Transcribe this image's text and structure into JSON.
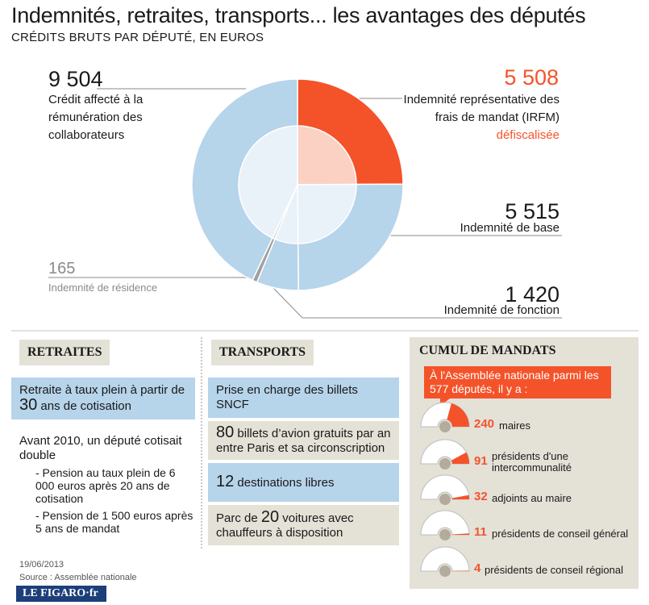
{
  "header": {
    "title": "Indemnités, retraites, transports... les avantages des députés",
    "subtitle": "CRÉDITS BRUTS PAR DÉPUTÉ, EN EUROS"
  },
  "chart_data": {
    "type": "pie",
    "title": "Indemnités, retraites, transports... les avantages des députés",
    "subtitle": "CRÉDITS BRUTS PAR DÉPUTÉ, EN EUROS",
    "slices": [
      {
        "value": "5 508",
        "amount": 5508,
        "label": "Indemnité représentative des frais de mandat (IRFM) défiscalisée",
        "color": "#f4532a"
      },
      {
        "value": "5 515",
        "amount": 5515,
        "label": "Indemnité de base",
        "color": "#b6d4ea"
      },
      {
        "value": "1 420",
        "amount": 1420,
        "label": "Indemnité de fonction",
        "color": "#b6d4ea"
      },
      {
        "value": "165",
        "amount": 165,
        "label": "Indemnité de résidence",
        "color": "#a0a0a0"
      },
      {
        "value": "9 504",
        "amount": 9504,
        "label": "Crédit affecté à la rémunération des collaborateurs",
        "color": "#b6d4ea"
      }
    ]
  },
  "labels": {
    "collab_value": "9 504",
    "collab_text": "Crédit affecté à la rémunération des collaborateurs",
    "irfm_value": "5 508",
    "irfm_text": "Indemnité représentative des frais de mandat (IRFM)",
    "irfm_highlight": "défiscalisée",
    "base_value": "5 515",
    "base_text": "Indemnité de base",
    "residence_value": "165",
    "residence_text": "Indemnité de résidence",
    "fonction_value": "1 420",
    "fonction_text": "Indemnité de fonction"
  },
  "retraites": {
    "heading": "RETRAITES",
    "box1_pre": "Retraite à taux plein à partir de ",
    "box1_num": "30",
    "box1_post": " ans de cotisation",
    "avant": "Avant 2010, un député cotisait double",
    "item1": "- Pension au taux plein de 6 000 euros après 20 ans de cotisation",
    "item2": "- Pension de 1 500 euros après 5 ans de mandat"
  },
  "transports": {
    "heading": "TRANSPORTS",
    "box1": "Prise en charge des billets SNCF",
    "box2_num": "80",
    "box2_text": " billets d’avion gratuits par an entre Paris et sa circonscription",
    "box3_num": "12",
    "box3_text": " destinations libres",
    "box4_pre": "Parc de ",
    "box4_num": "20",
    "box4_post": " voitures avec chauffeurs à disposition"
  },
  "cumul": {
    "heading": "CUMUL DE MANDATS",
    "callout": "À l'Assemblée nationale parmi les 577 députés, il y a :",
    "total": 577,
    "items": [
      {
        "num": "240",
        "count": 240,
        "label": "maires"
      },
      {
        "num": "91",
        "count": 91,
        "label": "présidents d'une intercommunalité"
      },
      {
        "num": "32",
        "count": 32,
        "label": "adjoints au maire"
      },
      {
        "num": "11",
        "count": 11,
        "label": "présidents de conseil général"
      },
      {
        "num": "4",
        "count": 4,
        "label": "présidents de conseil régional"
      }
    ]
  },
  "footer": {
    "date": "19/06/2013",
    "source": "Source : Assemblée nationale",
    "logo": "LE FIGARO·fr"
  },
  "colors": {
    "accent": "#f4532a",
    "blue": "#b6d4ea",
    "beige": "#e4e1d7"
  }
}
